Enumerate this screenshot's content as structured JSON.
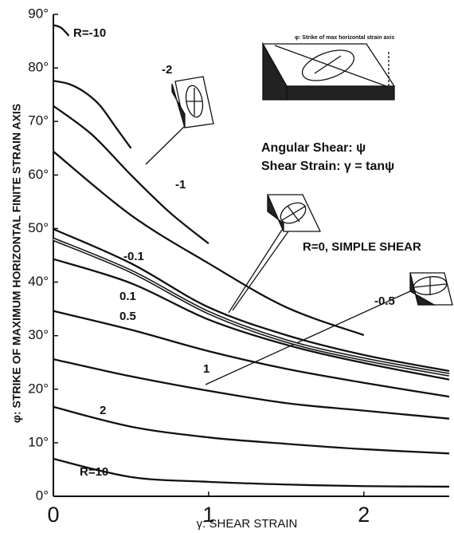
{
  "chart_data": {
    "type": "line",
    "x_label": "γ: SHEAR STRAIN",
    "y_label": "φ: STRIKE OF MAXIMUM HORIZONTAL FINITE STRAIN AXIS",
    "annotations": [
      "Angular Shear: ψ",
      "Shear Strain: γ = tanψ",
      "φ: Strike of max horizontal strain axis"
    ],
    "xlim": [
      0,
      2.55
    ],
    "ylim": [
      0,
      90
    ],
    "xticks": [
      0,
      1,
      2
    ],
    "yticks": [
      {
        "value": 0,
        "label": "0°"
      },
      {
        "value": 10,
        "label": "10°"
      },
      {
        "value": 20,
        "label": "20°"
      },
      {
        "value": 30,
        "label": "30°"
      },
      {
        "value": 40,
        "label": "40°"
      },
      {
        "value": 50,
        "label": "50°"
      },
      {
        "value": 60,
        "label": "60°"
      },
      {
        "value": 70,
        "label": "70°"
      },
      {
        "value": 80,
        "label": "80°"
      },
      {
        "value": 90,
        "label": "90°"
      }
    ],
    "series": [
      {
        "name": "R=-10",
        "color": "#111111",
        "x": [
          0,
          0.05,
          0.1
        ],
        "values": [
          88,
          87.5,
          86
        ]
      },
      {
        "name": "-2",
        "color": "#111111",
        "x": [
          0,
          0.1,
          0.2,
          0.3,
          0.4,
          0.5
        ],
        "values": [
          77.6,
          77,
          75.5,
          73,
          69,
          65
        ]
      },
      {
        "name": "-1",
        "color": "#111111",
        "x": [
          0,
          0.25,
          0.5,
          0.75,
          1
        ],
        "values": [
          72.9,
          67.5,
          60,
          53,
          47.2
        ]
      },
      {
        "name": "-0.5",
        "color": "#111111",
        "x": [
          0,
          0.5,
          1,
          1.5,
          2
        ],
        "values": [
          64.4,
          52.5,
          43.5,
          35.3,
          30.1
        ]
      },
      {
        "name": "-0.1",
        "color": "#111111",
        "x": [
          0,
          0.5,
          1,
          1.5,
          2,
          2.55
        ],
        "values": [
          49.9,
          43.5,
          35.3,
          30.1,
          26.4,
          23.4
        ]
      },
      {
        "name": "R=0, SIMPLE SHEAR",
        "color": "#111111",
        "line_style": "double",
        "x": [
          0,
          0.5,
          1,
          1.5,
          2,
          2.55
        ],
        "values": [
          48,
          42,
          34.3,
          29,
          25.6,
          22.7
        ]
      },
      {
        "name": "0.1",
        "color": "#111111",
        "x": [
          0,
          0.5,
          1,
          1.5,
          2,
          2.55
        ],
        "values": [
          44.3,
          39.8,
          33,
          28.3,
          24.9,
          21.8
        ]
      },
      {
        "name": "0.5",
        "color": "#111111",
        "x": [
          0,
          0.5,
          1,
          1.5,
          2,
          2.55
        ],
        "values": [
          34.6,
          31.1,
          27.1,
          23.8,
          21.2,
          18.6
        ]
      },
      {
        "name": "1",
        "color": "#111111",
        "x": [
          0,
          0.5,
          1,
          1.5,
          2,
          2.55
        ],
        "values": [
          25.6,
          22.4,
          19.7,
          17.4,
          16,
          14.5
        ]
      },
      {
        "name": "2",
        "color": "#111111",
        "x": [
          0,
          0.5,
          1,
          1.5,
          2,
          2.55
        ],
        "values": [
          16.7,
          13,
          11,
          9.8,
          8.8,
          8
        ]
      },
      {
        "name": "R=10",
        "color": "#111111",
        "x": [
          0,
          0.5,
          1,
          1.5,
          2,
          2.55
        ],
        "values": [
          7,
          3.6,
          2.7,
          2.2,
          1.9,
          1.8
        ]
      }
    ]
  }
}
